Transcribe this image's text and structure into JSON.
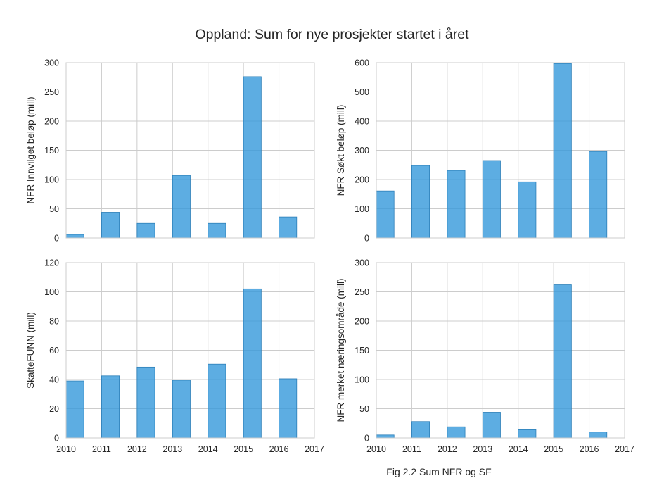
{
  "figure": {
    "title": "Oppland: Sum for nye prosjekter startet i året",
    "caption": "Fig 2.2 Sum NFR og SF"
  },
  "colors": {
    "bar": "#3498db",
    "grid": "#cccccc",
    "text": "#262626"
  },
  "chart_data": [
    {
      "type": "bar",
      "x": [
        2010,
        2011,
        2012,
        2013,
        2014,
        2015,
        2016
      ],
      "values": [
        6,
        44,
        25,
        107,
        25,
        276,
        36
      ],
      "ylabel": "NFR Innvilget beløp (mill)",
      "xlim": [
        2010,
        2017
      ],
      "ylim": [
        0,
        300
      ],
      "yticks": [
        0,
        50,
        100,
        150,
        200,
        250,
        300
      ],
      "xticks": [],
      "grid": true
    },
    {
      "type": "bar",
      "x": [
        2010,
        2011,
        2012,
        2013,
        2014,
        2015,
        2016
      ],
      "values": [
        161,
        248,
        231,
        265,
        192,
        597,
        296
      ],
      "ylabel": "NFR Søkt beløp (mill)",
      "xlim": [
        2010,
        2017
      ],
      "ylim": [
        0,
        600
      ],
      "yticks": [
        0,
        100,
        200,
        300,
        400,
        500,
        600
      ],
      "xticks": [],
      "grid": true
    },
    {
      "type": "bar",
      "x": [
        2010,
        2011,
        2012,
        2013,
        2014,
        2015,
        2016
      ],
      "values": [
        39,
        42.5,
        48.5,
        39.5,
        50.5,
        102,
        40.5
      ],
      "ylabel": "SkatteFUNN (mill)",
      "xlim": [
        2010,
        2017
      ],
      "ylim": [
        0,
        120
      ],
      "yticks": [
        0,
        20,
        40,
        60,
        80,
        100,
        120
      ],
      "xticks": [
        2010,
        2011,
        2012,
        2013,
        2014,
        2015,
        2016,
        2017
      ],
      "grid": true
    },
    {
      "type": "bar",
      "x": [
        2010,
        2011,
        2012,
        2013,
        2014,
        2015,
        2016
      ],
      "values": [
        5,
        28,
        19,
        44,
        14,
        262,
        10
      ],
      "ylabel": "NFR merket næringsområde (mill)",
      "xlim": [
        2010,
        2017
      ],
      "ylim": [
        0,
        300
      ],
      "yticks": [
        0,
        50,
        100,
        150,
        200,
        250,
        300
      ],
      "xticks": [
        2010,
        2011,
        2012,
        2013,
        2014,
        2015,
        2016,
        2017
      ],
      "grid": true
    }
  ]
}
